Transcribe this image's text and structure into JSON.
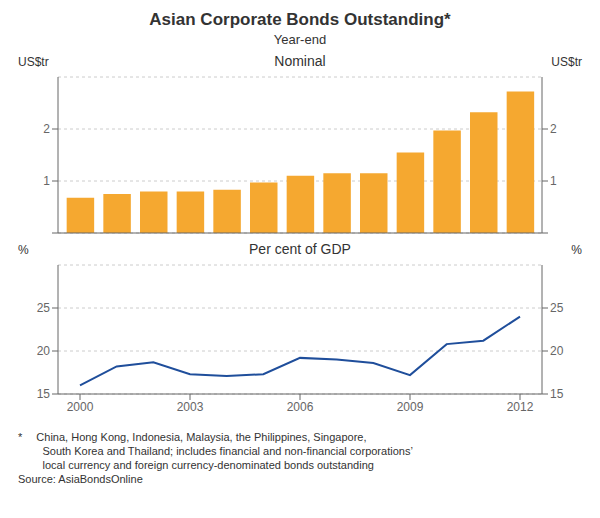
{
  "title": "Asian Corporate Bonds Outstanding*",
  "subtitle": "Year-end",
  "annotations": [
    "*  China, Hong Kong, Indonesia, Malaysia, the Philippines, Singapore,",
    "        South Korea and Thailand; includes financial and non-financial corporations’",
    "        local currency and foreign currency-denominated bonds outstanding",
    "Source: AsiaBondsOnline"
  ],
  "chart_data": [
    {
      "type": "bar",
      "title": "Nominal",
      "x": [
        2000,
        2001,
        2002,
        2003,
        2004,
        2005,
        2006,
        2007,
        2008,
        2009,
        2010,
        2011,
        2012
      ],
      "values": [
        0.68,
        0.75,
        0.8,
        0.8,
        0.83,
        0.97,
        1.1,
        1.15,
        1.15,
        1.55,
        1.97,
        2.32,
        2.72
      ],
      "color": "#F5A830",
      "xlim": [
        1999.4,
        2012.6
      ],
      "ylim": [
        0,
        3.0
      ],
      "yticks": [
        {
          "value": 0,
          "label": null
        },
        1,
        2
      ],
      "y2lim": [
        0,
        3.0
      ],
      "y2ticks": [
        {
          "value": 0,
          "label": null
        },
        1,
        2
      ],
      "ylabel": "US$tr",
      "y2label": "US$tr",
      "grid": true,
      "tick_labels": "y"
    },
    {
      "type": "line",
      "title": "Per cent of GDP",
      "x": [
        2000,
        2001,
        2002,
        2003,
        2004,
        2005,
        2006,
        2007,
        2008,
        2009,
        2010,
        2011,
        2012
      ],
      "values": [
        16.0,
        18.2,
        18.7,
        17.3,
        17.1,
        17.3,
        19.2,
        19.0,
        18.6,
        17.2,
        20.8,
        21.2,
        24.0
      ],
      "color": "#1F4E9B",
      "xlim": [
        1999.4,
        2012.6
      ],
      "xticks": [
        2000,
        2003,
        2006,
        2009,
        2012
      ],
      "ylim": [
        15,
        30
      ],
      "yticks": [
        15,
        20,
        25
      ],
      "y2lim": [
        15,
        30
      ],
      "y2ticks": [
        15,
        20,
        25
      ],
      "ylabel": "%",
      "y2label": "%",
      "grid": true
    }
  ]
}
